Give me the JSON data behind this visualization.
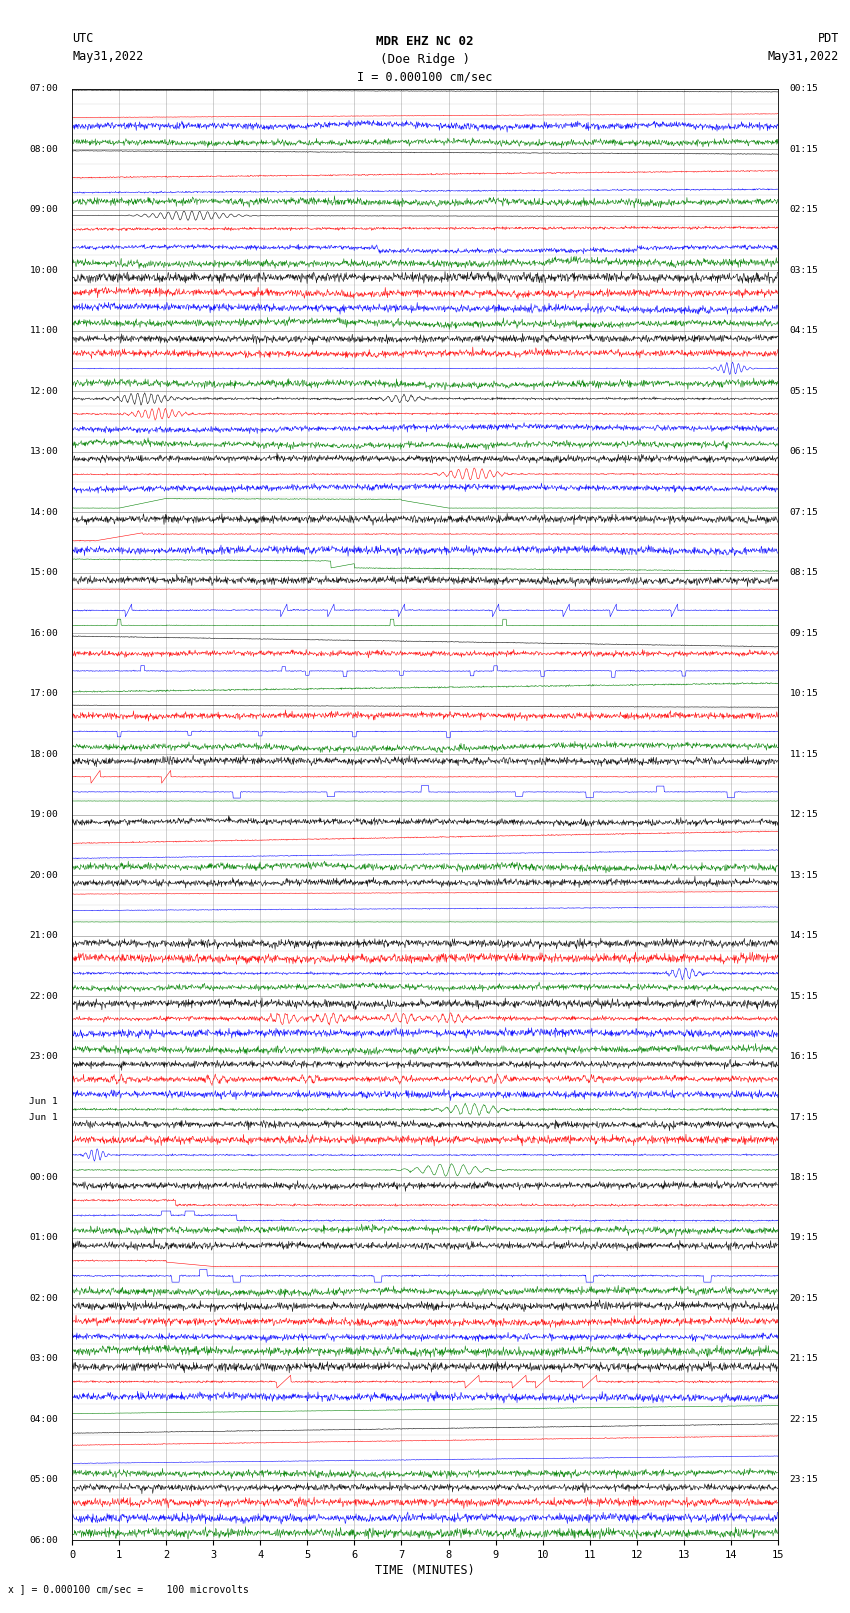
{
  "title_line1": "MDR EHZ NC 02",
  "title_line2": "(Doe Ridge )",
  "title_line3": "I = 0.000100 cm/sec",
  "label_left_top": "UTC",
  "label_left_date": "May31,2022",
  "label_right_top": "PDT",
  "label_right_date": "May31,2022",
  "xlabel": "TIME (MINUTES)",
  "footnote": "x ] = 0.000100 cm/sec =    100 microvolts",
  "utc_times_left": [
    "07:00",
    "08:00",
    "09:00",
    "10:00",
    "11:00",
    "12:00",
    "13:00",
    "14:00",
    "15:00",
    "16:00",
    "17:00",
    "18:00",
    "19:00",
    "20:00",
    "21:00",
    "22:00",
    "23:00",
    "Jun 1",
    "00:00",
    "01:00",
    "02:00",
    "03:00",
    "04:00",
    "05:00",
    "06:00"
  ],
  "pdt_times_right": [
    "00:15",
    "01:15",
    "02:15",
    "03:15",
    "04:15",
    "05:15",
    "06:15",
    "07:15",
    "08:15",
    "09:15",
    "10:15",
    "11:15",
    "12:15",
    "13:15",
    "14:15",
    "15:15",
    "16:15",
    "17:15",
    "18:15",
    "19:15",
    "20:15",
    "21:15",
    "22:15",
    "23:15"
  ],
  "bg_color": "#ffffff",
  "grid_color": "#888888",
  "line_colors": [
    "black",
    "red",
    "blue",
    "green"
  ],
  "fig_width": 8.5,
  "fig_height": 16.13,
  "dpi": 100,
  "xlim": [
    0,
    15
  ],
  "xticks": [
    0,
    1,
    2,
    3,
    4,
    5,
    6,
    7,
    8,
    9,
    10,
    11,
    12,
    13,
    14,
    15
  ]
}
